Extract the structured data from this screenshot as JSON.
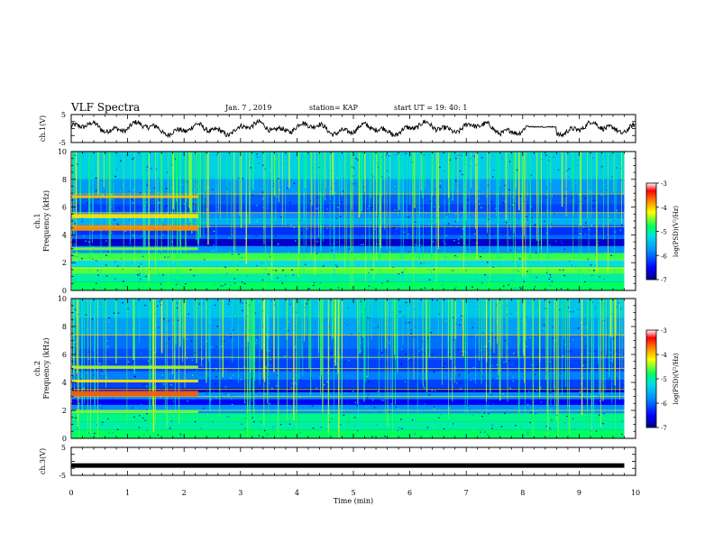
{
  "header": {
    "title": "VLF Spectra",
    "date": "Jan. 7 , 2019",
    "station": "station= KAP",
    "start": "start UT =  19: 40: 1"
  },
  "chart_data": [
    {
      "type": "line",
      "panel": "ch1-waveform",
      "ylabel": "ch.1(V)",
      "ylim": [
        -5,
        5
      ],
      "yticks": [
        "5",
        "-5"
      ],
      "xlim": [
        0,
        10
      ],
      "color": "#000000"
    },
    {
      "type": "heatmap",
      "panel": "ch1-spectrogram",
      "ylabel": "ch.1\nFrequency (kHz)",
      "ylim": [
        0,
        10
      ],
      "yticks": [
        "0",
        "2",
        "4",
        "6",
        "8",
        "10"
      ],
      "xlim": [
        0,
        10
      ],
      "data_end_min": 9.8,
      "colorbar": {
        "label": "log(PSD)(V²/Hz)",
        "range": [
          -7,
          -3
        ],
        "ticks": [
          "-3",
          "-4",
          "-5",
          "-6",
          "-7"
        ]
      }
    },
    {
      "type": "heatmap",
      "panel": "ch2-spectrogram",
      "ylabel": "ch.2\nFrequency (kHz)",
      "ylim": [
        0,
        10
      ],
      "yticks": [
        "0",
        "2",
        "4",
        "6",
        "8",
        "10"
      ],
      "xlim": [
        0,
        10
      ],
      "data_end_min": 9.8,
      "colorbar": {
        "label": "log(PSD)(V²/Hz)",
        "range": [
          -7,
          -3
        ],
        "ticks": [
          "-3",
          "-4",
          "-5",
          "-6",
          "-7"
        ]
      }
    },
    {
      "type": "line",
      "panel": "ch3-waveform",
      "ylabel": "ch.3(V)",
      "ylim": [
        -5,
        5
      ],
      "yticks": [
        "5",
        "-5"
      ],
      "xlim": [
        0,
        10
      ],
      "xlabel": "Time (min)",
      "xticks": [
        "0",
        "1",
        "2",
        "3",
        "4",
        "5",
        "6",
        "7",
        "8",
        "9",
        "10"
      ],
      "value_V": -1.5,
      "color": "#000000"
    }
  ]
}
